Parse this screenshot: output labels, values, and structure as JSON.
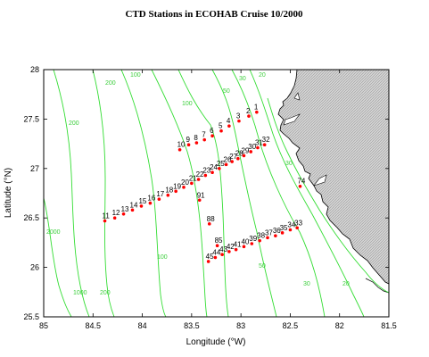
{
  "title": "CTD Stations in ECOHAB Cruise 10/2000",
  "xlabel": "Longitude (°W)",
  "ylabel": "Latitude (°N)",
  "colors": {
    "contour": "#33dd33",
    "station": "#ff0000",
    "land_fill": "#d4d4d4",
    "coast": "#000000"
  },
  "x_ticks": [
    "85",
    "84.5",
    "84",
    "83.5",
    "83",
    "82.5",
    "82",
    "81.5"
  ],
  "y_ticks": [
    "25.5",
    "26",
    "26.5",
    "27",
    "27.5",
    "28"
  ],
  "contour_labels": [
    "200",
    "200",
    "100",
    "100",
    "50",
    "30",
    "20",
    "200",
    "1000",
    "2000",
    "100",
    "50",
    "30",
    "20",
    "30"
  ],
  "chart_data": {
    "type": "scatter",
    "title": "CTD Stations in ECOHAB Cruise 10/2000",
    "xlabel": "Longitude (°W)",
    "ylabel": "Latitude (°N)",
    "xlim": [
      85,
      81.5
    ],
    "ylim": [
      25.5,
      28
    ],
    "grid": false,
    "stations": [
      {
        "label": "1",
        "lon": 82.84,
        "lat": 27.57
      },
      {
        "label": "2",
        "lon": 82.92,
        "lat": 27.53
      },
      {
        "label": "3",
        "lon": 83.02,
        "lat": 27.48
      },
      {
        "label": "4",
        "lon": 83.12,
        "lat": 27.43
      },
      {
        "label": "5",
        "lon": 83.2,
        "lat": 27.38
      },
      {
        "label": "6",
        "lon": 83.29,
        "lat": 27.33
      },
      {
        "label": "7",
        "lon": 83.37,
        "lat": 27.29
      },
      {
        "label": "8",
        "lon": 83.45,
        "lat": 27.26
      },
      {
        "label": "9",
        "lon": 83.53,
        "lat": 27.24
      },
      {
        "label": "10",
        "lon": 83.62,
        "lat": 27.19
      },
      {
        "label": "11",
        "lon": 84.38,
        "lat": 26.47
      },
      {
        "label": "12",
        "lon": 84.28,
        "lat": 26.5
      },
      {
        "label": "13",
        "lon": 84.19,
        "lat": 26.54
      },
      {
        "label": "14",
        "lon": 84.1,
        "lat": 26.58
      },
      {
        "label": "15",
        "lon": 84.01,
        "lat": 26.62
      },
      {
        "label": "16",
        "lon": 83.92,
        "lat": 26.65
      },
      {
        "label": "17",
        "lon": 83.83,
        "lat": 26.69
      },
      {
        "label": "18",
        "lon": 83.74,
        "lat": 26.73
      },
      {
        "label": "19",
        "lon": 83.66,
        "lat": 26.77
      },
      {
        "label": "20",
        "lon": 83.58,
        "lat": 26.81
      },
      {
        "label": "21",
        "lon": 83.5,
        "lat": 26.85
      },
      {
        "label": "22",
        "lon": 83.43,
        "lat": 26.89
      },
      {
        "label": "23",
        "lon": 83.36,
        "lat": 26.93
      },
      {
        "label": "24",
        "lon": 83.29,
        "lat": 26.96
      },
      {
        "label": "25",
        "lon": 83.22,
        "lat": 27.0
      },
      {
        "label": "26",
        "lon": 83.15,
        "lat": 27.04
      },
      {
        "label": "27",
        "lon": 83.09,
        "lat": 27.07
      },
      {
        "label": "28",
        "lon": 83.03,
        "lat": 27.1
      },
      {
        "label": "29",
        "lon": 82.97,
        "lat": 27.13
      },
      {
        "label": "30",
        "lon": 82.9,
        "lat": 27.17
      },
      {
        "label": "31",
        "lon": 82.83,
        "lat": 27.21
      },
      {
        "label": "32",
        "lon": 82.76,
        "lat": 27.24
      },
      {
        "label": "33",
        "lon": 82.43,
        "lat": 26.4
      },
      {
        "label": "34",
        "lon": 82.5,
        "lat": 26.38
      },
      {
        "label": "35",
        "lon": 82.58,
        "lat": 26.35
      },
      {
        "label": "36",
        "lon": 82.65,
        "lat": 26.32
      },
      {
        "label": "37",
        "lon": 82.73,
        "lat": 26.3
      },
      {
        "label": "38",
        "lon": 82.81,
        "lat": 26.27
      },
      {
        "label": "39",
        "lon": 82.89,
        "lat": 26.24
      },
      {
        "label": "40",
        "lon": 82.97,
        "lat": 26.21
      },
      {
        "label": "41",
        "lon": 83.05,
        "lat": 26.18
      },
      {
        "label": "42",
        "lon": 83.12,
        "lat": 26.16
      },
      {
        "label": "43",
        "lon": 83.19,
        "lat": 26.13
      },
      {
        "label": "44",
        "lon": 83.26,
        "lat": 26.1
      },
      {
        "label": "45",
        "lon": 83.33,
        "lat": 26.06
      },
      {
        "label": "74",
        "lon": 82.4,
        "lat": 26.82
      },
      {
        "label": "85",
        "lon": 83.24,
        "lat": 26.22
      },
      {
        "label": "88",
        "lon": 83.32,
        "lat": 26.44
      },
      {
        "label": "91",
        "lon": 83.42,
        "lat": 26.68
      }
    ]
  }
}
